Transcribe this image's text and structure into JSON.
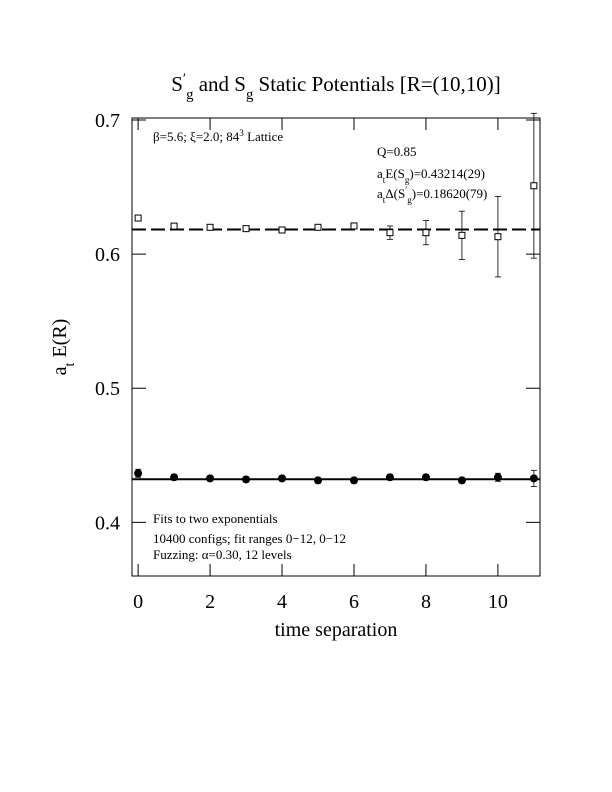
{
  "chart_data": {
    "type": "errorbar",
    "title": [
      {
        "text": "S"
      },
      {
        "sup": "′"
      },
      {
        "sub": "g"
      },
      {
        "text": "  and S"
      },
      {
        "sub": "g"
      },
      {
        "text": " Static Potentials [R=(10,10)]"
      }
    ],
    "xlabel": [
      {
        "text": "time separation"
      }
    ],
    "ylabel": [
      {
        "text": "a"
      },
      {
        "sub": "t"
      },
      {
        "text": " E(R)"
      }
    ],
    "annotations": [
      [
        {
          "text": "β=5.6; ξ=2.0; 8"
        },
        {
          "text": "4"
        },
        {
          "sup": "3"
        },
        {
          "text": " Lattice"
        }
      ],
      [
        {
          "text": "Q=0.85"
        }
      ],
      [
        {
          "text": "a"
        },
        {
          "sub": "t"
        },
        {
          "text": "E(S"
        },
        {
          "sub": "g"
        },
        {
          "text": ")=0.43214(29)"
        }
      ],
      [
        {
          "text": "a"
        },
        {
          "sub": "t"
        },
        {
          "text": "Δ(S"
        },
        {
          "sup": "′"
        },
        {
          "sub": "g"
        },
        {
          "text": ")=0.18620(79)"
        }
      ],
      [
        {
          "text": "Fits to two exponentials"
        }
      ],
      [
        {
          "text": "10400 configs; fit ranges 0−12, 0−12"
        }
      ],
      [
        {
          "text": "Fuzzing: α=0.30, 12 levels"
        }
      ]
    ],
    "x": [
      0,
      1,
      2,
      3,
      4,
      5,
      6,
      7,
      8,
      9,
      10,
      11
    ],
    "series": [
      {
        "marker": "square",
        "color": "#000000",
        "values": [
          0.6269,
          0.6209,
          0.62,
          0.619,
          0.618,
          0.62,
          0.621,
          0.616,
          0.616,
          0.614,
          0.613,
          0.651
        ],
        "errors": [
          0.001,
          0.001,
          0.001,
          0.001,
          0.001,
          0.002,
          0.002,
          0.005,
          0.009,
          0.018,
          0.03,
          0.054
        ]
      },
      {
        "marker": "circle",
        "color": "#000000",
        "values": [
          0.4366,
          0.4336,
          0.4328,
          0.432,
          0.4328,
          0.4313,
          0.4313,
          0.4336,
          0.4336,
          0.4313,
          0.4336,
          0.4328
        ],
        "errors": [
          0.003,
          0.002,
          0.002,
          0.002,
          0.002,
          0.002,
          0.002,
          0.002,
          0.002,
          0.002,
          0.003,
          0.006
        ]
      }
    ],
    "fits": [
      {
        "value": 0.61834,
        "dashed": true
      },
      {
        "value": 0.43214,
        "dashed": false
      }
    ],
    "xlim": [
      -0.17,
      11.17
    ],
    "ylim": [
      0.36,
      0.7015
    ],
    "xticks": [
      0,
      2,
      4,
      6,
      8,
      10
    ],
    "yticks": [
      0.4,
      0.5,
      0.6,
      0.7
    ]
  }
}
